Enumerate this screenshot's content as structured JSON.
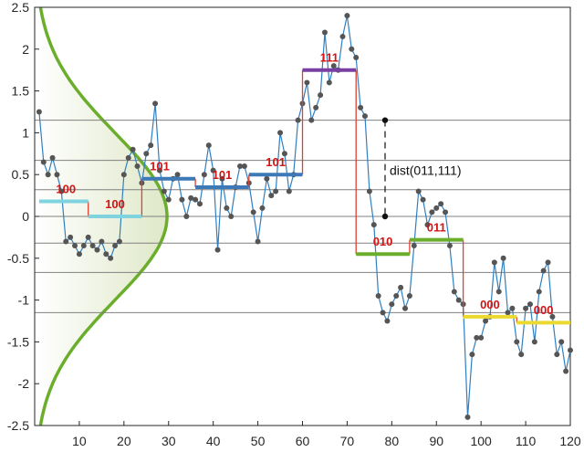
{
  "chart_data": {
    "type": "line",
    "title": "",
    "xlabel": "",
    "ylabel": "",
    "xlim": [
      0,
      120
    ],
    "ylim": [
      -2.5,
      2.5
    ],
    "xticks": [
      10,
      20,
      30,
      40,
      50,
      60,
      70,
      80,
      90,
      100,
      110,
      120
    ],
    "yticks": [
      2.5,
      2,
      1.5,
      1,
      0.5,
      0,
      -0.5,
      -1,
      -1.5,
      -2,
      -2.5
    ],
    "grid": "horizontal breakpoint lines",
    "breakpoints": [
      1.15,
      0.67,
      0.32,
      0,
      -0.32,
      -0.67,
      -1.15
    ],
    "colors": {
      "series": "#2f7fc1",
      "markers": "#555555",
      "curve": "#6aae2b",
      "curve_fill": "#dfe8c8",
      "step_connector": "#e04030",
      "grid": "#808080",
      "label": "#d21414"
    },
    "series": [
      {
        "x": [
          1,
          2,
          3,
          4,
          5,
          6,
          7,
          8,
          9,
          10,
          11,
          12,
          13,
          14,
          15,
          16,
          17,
          18,
          19,
          20,
          21,
          22,
          23,
          24,
          25,
          26,
          27,
          28,
          29,
          30,
          31,
          32,
          33,
          34,
          35,
          36,
          37,
          38,
          39,
          40,
          41,
          42,
          43,
          44,
          45,
          46,
          47,
          48,
          49,
          50,
          51,
          52,
          53,
          54,
          55,
          56,
          57,
          58,
          59,
          60,
          61,
          62,
          63,
          64,
          65,
          66,
          67,
          68,
          69,
          70,
          71,
          72,
          73,
          74,
          75,
          76,
          77,
          78,
          79,
          80,
          81,
          82,
          83,
          84,
          85,
          86,
          87,
          88,
          89,
          90,
          91,
          92,
          93,
          94,
          95,
          96,
          97,
          98,
          99,
          100,
          101,
          102,
          103,
          104,
          105,
          106,
          107,
          108,
          109,
          110,
          111,
          112,
          113,
          114,
          115,
          116,
          117,
          118,
          119,
          120
        ],
        "values": [
          1.25,
          0.65,
          0.5,
          0.7,
          0.5,
          0.3,
          -0.3,
          -0.25,
          -0.35,
          -0.45,
          -0.35,
          -0.25,
          -0.35,
          -0.4,
          -0.3,
          -0.45,
          -0.5,
          -0.35,
          -0.3,
          0.5,
          0.7,
          0.8,
          0.6,
          0.4,
          0.75,
          0.85,
          1.35,
          0.55,
          0.3,
          0.2,
          0.45,
          0.5,
          0.2,
          0.0,
          0.22,
          0.2,
          0.15,
          0.5,
          0.85,
          0.55,
          -0.4,
          0.45,
          0.1,
          0.0,
          0.35,
          0.6,
          0.6,
          0.4,
          0.05,
          -0.3,
          0.1,
          0.45,
          0.25,
          0.3,
          1.0,
          0.75,
          0.3,
          0.5,
          1.15,
          1.35,
          1.6,
          1.15,
          1.3,
          1.45,
          2.2,
          1.6,
          1.8,
          1.75,
          2.15,
          2.4,
          2.0,
          1.9,
          1.3,
          1.2,
          0.3,
          -0.1,
          -0.95,
          -1.15,
          -1.25,
          -1.05,
          -0.95,
          -0.85,
          -1.1,
          -0.95,
          -0.35,
          0.3,
          0.2,
          -0.1,
          0.05,
          0.1,
          0.15,
          0.05,
          -0.35,
          -0.9,
          -1.0,
          -1.05,
          -2.4,
          -1.65,
          -1.45,
          -1.45,
          -1.25,
          -1.2,
          -0.55,
          -0.9,
          -0.5,
          -1.15,
          -1.1,
          -1.5,
          -1.65,
          -1.1,
          -1.05,
          -1.5,
          -0.9,
          -0.65,
          -0.55,
          -1.2,
          -1.65,
          -1.5,
          -1.85,
          -1.6
        ]
      }
    ],
    "segments": [
      {
        "x_start": 1,
        "x_end": 12,
        "value": 0.18,
        "label": "100",
        "color": "#7fd3df",
        "label_x": 7,
        "label_y": 0.28
      },
      {
        "x_start": 12,
        "x_end": 24,
        "value": 0.0,
        "label": "100",
        "color": "#7fd3df",
        "label_x": 18,
        "label_y": 0.1
      },
      {
        "x_start": 24,
        "x_end": 36,
        "value": 0.45,
        "label": "101",
        "color": "#3d79b6",
        "label_x": 28,
        "label_y": 0.55
      },
      {
        "x_start": 36,
        "x_end": 48,
        "value": 0.35,
        "label": "101",
        "color": "#3d79b6",
        "label_x": 42,
        "label_y": 0.45
      },
      {
        "x_start": 48,
        "x_end": 60,
        "value": 0.5,
        "label": "101",
        "color": "#3d79b6",
        "label_x": 54,
        "label_y": 0.6
      },
      {
        "x_start": 60,
        "x_end": 72,
        "value": 1.75,
        "label": "111",
        "color": "#7a3fa3",
        "label_x": 66,
        "label_y": 1.85
      },
      {
        "x_start": 72,
        "x_end": 84,
        "value": -0.45,
        "label": "010",
        "color": "#6aae2b",
        "label_x": 78,
        "label_y": -0.35
      },
      {
        "x_start": 84,
        "x_end": 96,
        "value": -0.28,
        "label": "011",
        "color": "#6aae2b",
        "label_x": 90,
        "label_y": -0.18
      },
      {
        "x_start": 96,
        "x_end": 108,
        "value": -1.2,
        "label": "000",
        "color": "#ecd930",
        "label_x": 102,
        "label_y": -1.1
      },
      {
        "x_start": 108,
        "x_end": 120,
        "value": -1.27,
        "label": "000",
        "color": "#ecd930",
        "label_x": 114,
        "label_y": -1.17
      }
    ],
    "annotations": [
      {
        "text": "dist(011,111)",
        "x": 78.5,
        "y_top": 1.15,
        "y_bottom": 0.0,
        "text_y": 0.55
      }
    ]
  }
}
